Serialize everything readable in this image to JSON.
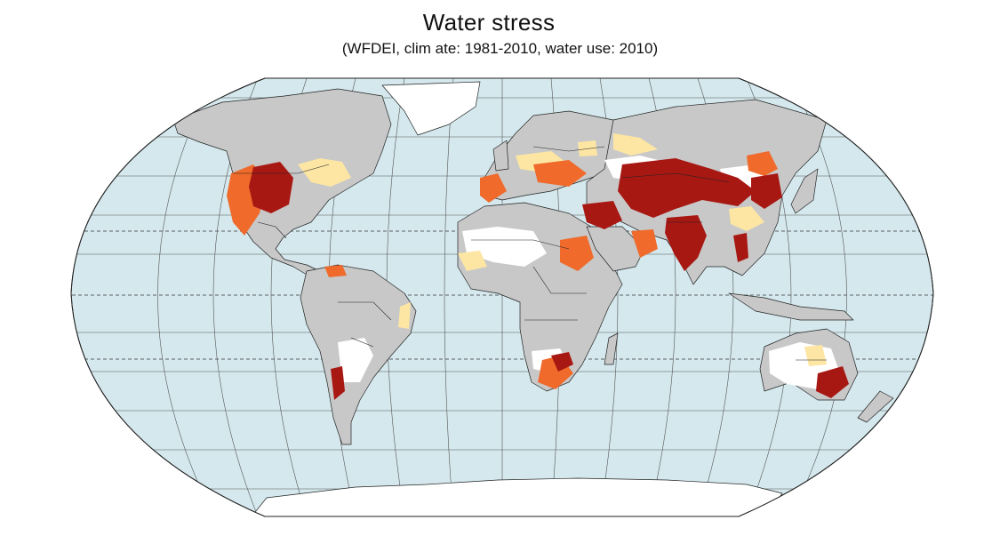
{
  "title": "Water stress",
  "subtitle": "(WFDEI, clim  ate: 1981-2010, water use: 2010)",
  "map": {
    "projection": "Robinson",
    "colors": {
      "ocean": "#d4e8ed",
      "land_no_data": "#c8c8c8",
      "low_stress": "#ffffff",
      "moderate_stress": "#fde6a3",
      "high_stress": "#ef6a2b",
      "extreme_stress": "#a81813",
      "borders": "#222222",
      "graticule": "#555555"
    }
  }
}
